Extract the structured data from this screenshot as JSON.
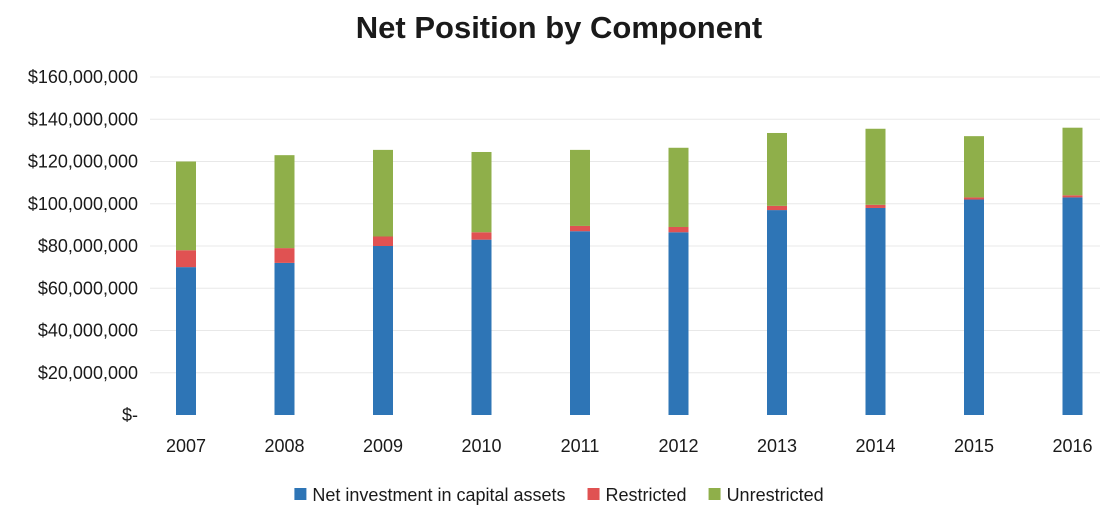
{
  "chart_data": {
    "type": "bar",
    "stacked": true,
    "title": "Net Position by Component",
    "xlabel": "",
    "ylabel": "",
    "categories": [
      "2007",
      "2008",
      "2009",
      "2010",
      "2011",
      "2012",
      "2013",
      "2014",
      "2015",
      "2016"
    ],
    "series": [
      {
        "name": "Net investment in capital assets",
        "color": "#2e75b6",
        "values": [
          70000000,
          72000000,
          80000000,
          83000000,
          87000000,
          86500000,
          97000000,
          98000000,
          102000000,
          103000000
        ]
      },
      {
        "name": "Restricted",
        "color": "#e05252",
        "values": [
          8000000,
          7000000,
          4500000,
          3500000,
          2500000,
          2500000,
          2000000,
          1500000,
          1000000,
          1000000
        ]
      },
      {
        "name": "Unrestricted",
        "color": "#8faf4a",
        "values": [
          42000000,
          44000000,
          41000000,
          38000000,
          36000000,
          37500000,
          34500000,
          36000000,
          29000000,
          32000000
        ]
      }
    ],
    "ylim": [
      0,
      160000000
    ],
    "yticks": [
      0,
      20000000,
      40000000,
      60000000,
      80000000,
      100000000,
      120000000,
      140000000,
      160000000
    ],
    "ytick_labels": [
      "$-",
      "$20,000,000",
      "$40,000,000",
      "$60,000,000",
      "$80,000,000",
      "$100,000,000",
      "$120,000,000",
      "$140,000,000",
      "$160,000,000"
    ],
    "grid": true,
    "legend_position": "bottom"
  }
}
